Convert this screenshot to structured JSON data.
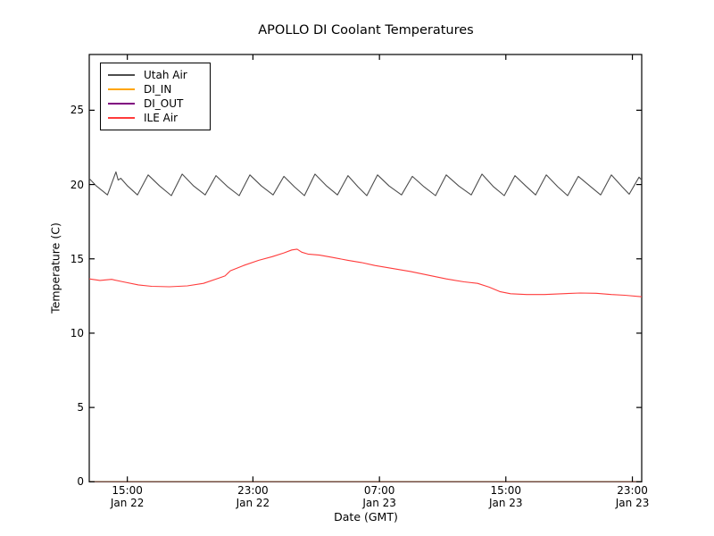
{
  "chart_data": {
    "type": "line",
    "title": "APOLLO DI Coolant Temperatures",
    "xlabel": "Date (GMT)",
    "ylabel": "Temperature (C)",
    "x_unit": "hours-from-plot-start",
    "xlim": [
      0,
      34.97
    ],
    "ylim": [
      0,
      28.75
    ],
    "grid": false,
    "legend_position": "upper left",
    "y_ticks": [
      0,
      5,
      10,
      15,
      20,
      25
    ],
    "x_ticks": [
      {
        "t": 2.41,
        "time": "15:00",
        "date": "Jan 22"
      },
      {
        "t": 10.36,
        "time": "23:00",
        "date": "Jan 22"
      },
      {
        "t": 18.37,
        "time": "07:00",
        "date": "Jan 23"
      },
      {
        "t": 26.37,
        "time": "15:00",
        "date": "Jan 23"
      },
      {
        "t": 34.38,
        "time": "23:00",
        "date": "Jan 23"
      }
    ],
    "series": [
      {
        "name": "Utah Air",
        "color": "#4d4d4d",
        "points": [
          [
            0,
            20.4
          ],
          [
            0.45,
            19.9
          ],
          [
            1.15,
            19.3
          ],
          [
            1.69,
            20.85
          ],
          [
            1.83,
            20.3
          ],
          [
            2.0,
            20.42
          ],
          [
            2.43,
            19.9
          ],
          [
            3.05,
            19.3
          ],
          [
            3.73,
            20.65
          ],
          [
            4.46,
            19.9
          ],
          [
            5.2,
            19.25
          ],
          [
            5.88,
            20.7
          ],
          [
            6.61,
            19.9
          ],
          [
            7.34,
            19.3
          ],
          [
            8.02,
            20.6
          ],
          [
            8.76,
            19.85
          ],
          [
            9.49,
            19.25
          ],
          [
            10.17,
            20.65
          ],
          [
            10.9,
            19.9
          ],
          [
            11.64,
            19.3
          ],
          [
            12.32,
            20.55
          ],
          [
            12.99,
            19.85
          ],
          [
            13.62,
            19.25
          ],
          [
            14.29,
            20.7
          ],
          [
            15.03,
            19.9
          ],
          [
            15.71,
            19.3
          ],
          [
            16.38,
            20.6
          ],
          [
            17.01,
            19.85
          ],
          [
            17.57,
            19.25
          ],
          [
            18.25,
            20.65
          ],
          [
            18.98,
            19.9
          ],
          [
            19.77,
            19.3
          ],
          [
            20.45,
            20.55
          ],
          [
            21.19,
            19.85
          ],
          [
            21.92,
            19.25
          ],
          [
            22.6,
            20.65
          ],
          [
            23.39,
            19.9
          ],
          [
            24.18,
            19.3
          ],
          [
            24.86,
            20.7
          ],
          [
            25.59,
            19.85
          ],
          [
            26.27,
            19.25
          ],
          [
            26.95,
            20.6
          ],
          [
            27.63,
            19.9
          ],
          [
            28.25,
            19.3
          ],
          [
            28.93,
            20.65
          ],
          [
            29.66,
            19.85
          ],
          [
            30.28,
            19.25
          ],
          [
            30.96,
            20.55
          ],
          [
            31.69,
            19.9
          ],
          [
            32.37,
            19.3
          ],
          [
            33.05,
            20.65
          ],
          [
            33.73,
            19.85
          ],
          [
            34.18,
            19.35
          ],
          [
            34.8,
            20.5
          ],
          [
            34.97,
            20.3
          ]
        ]
      },
      {
        "name": "DI_IN",
        "color": "#ffa500",
        "points": [
          [
            0,
            0
          ],
          [
            34.97,
            0
          ]
        ]
      },
      {
        "name": "DI_OUT",
        "color": "#800080",
        "points": [
          [
            0,
            0
          ],
          [
            34.97,
            0
          ]
        ]
      },
      {
        "name": "ILE Air",
        "color": "#ff3b3b",
        "points": [
          [
            0,
            13.65
          ],
          [
            0.68,
            13.55
          ],
          [
            1.41,
            13.62
          ],
          [
            2.15,
            13.45
          ],
          [
            3.11,
            13.25
          ],
          [
            3.95,
            13.15
          ],
          [
            5.08,
            13.12
          ],
          [
            6.21,
            13.18
          ],
          [
            7.23,
            13.35
          ],
          [
            8.19,
            13.7
          ],
          [
            8.59,
            13.85
          ],
          [
            8.93,
            14.2
          ],
          [
            9.77,
            14.55
          ],
          [
            10.73,
            14.9
          ],
          [
            11.58,
            15.15
          ],
          [
            12.32,
            15.4
          ],
          [
            12.82,
            15.6
          ],
          [
            13.16,
            15.65
          ],
          [
            13.45,
            15.45
          ],
          [
            13.84,
            15.32
          ],
          [
            14.58,
            15.25
          ],
          [
            15.37,
            15.1
          ],
          [
            16.38,
            14.9
          ],
          [
            17.23,
            14.75
          ],
          [
            18.08,
            14.55
          ],
          [
            19.21,
            14.35
          ],
          [
            20.34,
            14.15
          ],
          [
            21.47,
            13.9
          ],
          [
            22.6,
            13.65
          ],
          [
            23.73,
            13.45
          ],
          [
            24.58,
            13.35
          ],
          [
            25.31,
            13.1
          ],
          [
            25.99,
            12.8
          ],
          [
            26.67,
            12.65
          ],
          [
            27.68,
            12.6
          ],
          [
            28.81,
            12.6
          ],
          [
            29.94,
            12.65
          ],
          [
            31.07,
            12.7
          ],
          [
            32.09,
            12.68
          ],
          [
            33.05,
            12.6
          ],
          [
            33.9,
            12.55
          ],
          [
            34.97,
            12.45
          ]
        ]
      }
    ]
  }
}
